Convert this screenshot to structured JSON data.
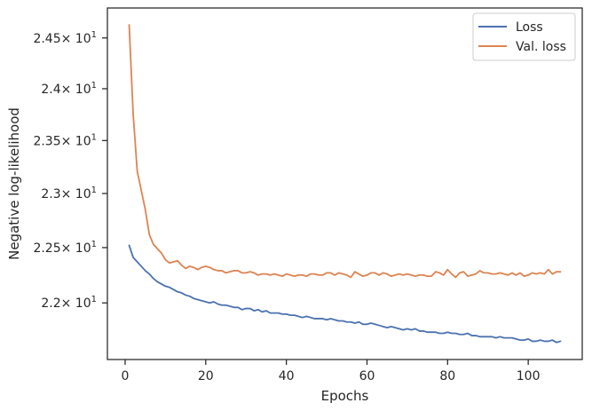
{
  "chart_data": {
    "type": "line",
    "xlabel": "Epochs",
    "ylabel": "Negative log-likelihood",
    "xlim": [
      -4.4,
      113.4
    ],
    "ylim": [
      21.5,
      24.8
    ],
    "yscale": "log",
    "x_ticks": [
      {
        "value": 0,
        "label": "0"
      },
      {
        "value": 20,
        "label": "20"
      },
      {
        "value": 40,
        "label": "40"
      },
      {
        "value": 60,
        "label": "60"
      },
      {
        "value": 80,
        "label": "80"
      },
      {
        "value": 100,
        "label": "100"
      }
    ],
    "y_ticks": [
      {
        "value": 22.0,
        "mant": "2.2",
        "exp": "1"
      },
      {
        "value": 22.5,
        "mant": "2.25",
        "exp": "1"
      },
      {
        "value": 23.0,
        "mant": "2.3",
        "exp": "1"
      },
      {
        "value": 23.5,
        "mant": "2.35",
        "exp": "1"
      },
      {
        "value": 24.0,
        "mant": "2.4",
        "exp": "1"
      },
      {
        "value": 24.5,
        "mant": "2.45",
        "exp": "1"
      }
    ],
    "y_tick_base_symbol": "× 10",
    "grid": false,
    "legend_position": "top-right",
    "series": [
      {
        "name": "Loss",
        "color": "#4c72b0",
        "x_start": 1,
        "values": [
          22.52,
          22.41,
          22.37,
          22.33,
          22.29,
          22.26,
          22.22,
          22.19,
          22.17,
          22.15,
          22.14,
          22.12,
          22.1,
          22.09,
          22.07,
          22.06,
          22.04,
          22.03,
          22.02,
          22.01,
          22.0,
          22.01,
          21.99,
          21.98,
          21.98,
          21.97,
          21.96,
          21.96,
          21.94,
          21.95,
          21.95,
          21.93,
          21.94,
          21.92,
          21.93,
          21.91,
          21.91,
          21.91,
          21.9,
          21.9,
          21.89,
          21.89,
          21.88,
          21.87,
          21.88,
          21.87,
          21.86,
          21.86,
          21.86,
          21.85,
          21.86,
          21.85,
          21.84,
          21.84,
          21.83,
          21.83,
          21.82,
          21.83,
          21.81,
          21.81,
          21.82,
          21.81,
          21.8,
          21.79,
          21.78,
          21.79,
          21.78,
          21.77,
          21.76,
          21.77,
          21.76,
          21.77,
          21.75,
          21.75,
          21.74,
          21.74,
          21.74,
          21.73,
          21.73,
          21.74,
          21.73,
          21.73,
          21.72,
          21.72,
          21.73,
          21.71,
          21.71,
          21.7,
          21.7,
          21.7,
          21.7,
          21.69,
          21.7,
          21.69,
          21.69,
          21.69,
          21.68,
          21.67,
          21.67,
          21.68,
          21.66,
          21.66,
          21.67,
          21.66,
          21.66,
          21.67,
          21.65,
          21.66
        ]
      },
      {
        "name": "Val. loss",
        "color": "#dd8452",
        "x_start": 1,
        "values": [
          24.63,
          23.75,
          23.21,
          23.03,
          22.85,
          22.62,
          22.53,
          22.49,
          22.45,
          22.39,
          22.36,
          22.37,
          22.38,
          22.34,
          22.31,
          22.33,
          22.32,
          22.3,
          22.32,
          22.33,
          22.32,
          22.3,
          22.29,
          22.29,
          22.27,
          22.28,
          22.29,
          22.29,
          22.27,
          22.27,
          22.28,
          22.27,
          22.25,
          22.26,
          22.26,
          22.25,
          22.26,
          22.25,
          22.24,
          22.26,
          22.25,
          22.24,
          22.25,
          22.25,
          22.24,
          22.26,
          22.26,
          22.25,
          22.25,
          22.27,
          22.27,
          22.25,
          22.27,
          22.26,
          22.25,
          22.23,
          22.28,
          22.26,
          22.24,
          22.25,
          22.27,
          22.27,
          22.25,
          22.27,
          22.26,
          22.24,
          22.25,
          22.26,
          22.25,
          22.26,
          22.25,
          22.24,
          22.25,
          22.25,
          22.24,
          22.24,
          22.28,
          22.27,
          22.25,
          22.3,
          22.26,
          22.23,
          22.27,
          22.28,
          22.24,
          22.25,
          22.26,
          22.29,
          22.27,
          22.27,
          22.26,
          22.26,
          22.27,
          22.26,
          22.25,
          22.27,
          22.25,
          22.27,
          22.24,
          22.25,
          22.27,
          22.26,
          22.27,
          22.26,
          22.3,
          22.26,
          22.28,
          22.28
        ]
      }
    ]
  }
}
